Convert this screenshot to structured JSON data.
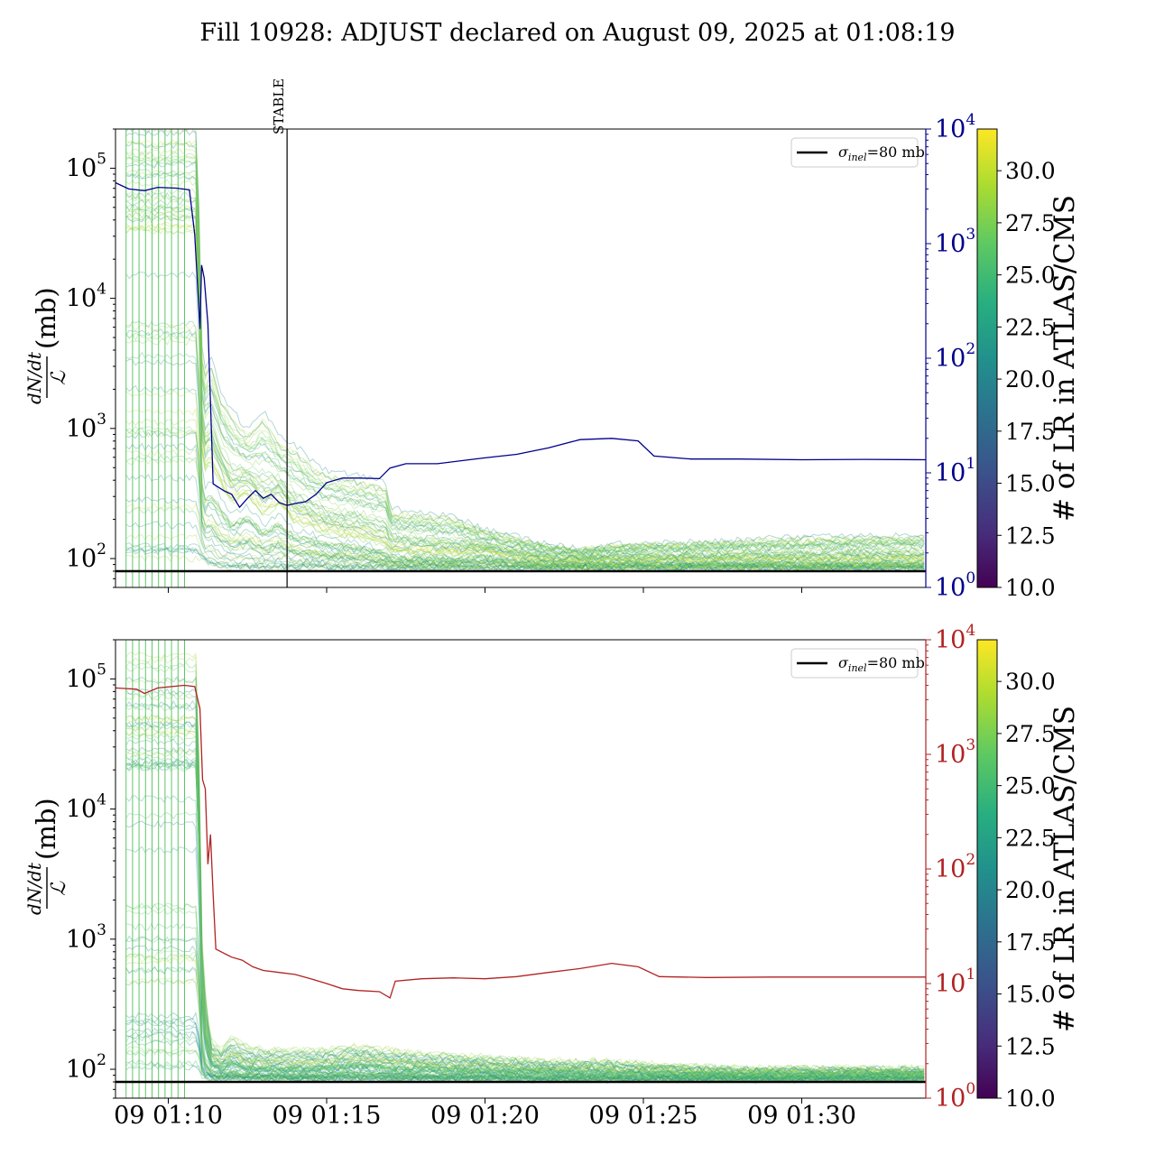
{
  "figure": {
    "title": "Fill 10928: ADJUST declared on August 09, 2025 at 01:08:19"
  },
  "colors": {
    "blue_series": "#00008b",
    "red_series": "#b22222",
    "reference_line": "#000000",
    "band_green": "#5cc863",
    "band_teal": "#2a9a8a",
    "band_yellow": "#c8e020"
  },
  "chart_data": [
    {
      "type": "line",
      "panel": "top",
      "ylabel": "dN/dt / ℒ (mb)",
      "yscale": "log",
      "ylim": [
        60,
        200000
      ],
      "yticks": [
        {
          "base": "10",
          "exp": "2",
          "value": 100
        },
        {
          "base": "10",
          "exp": "3",
          "value": 1000
        },
        {
          "base": "10",
          "exp": "4",
          "value": 10000
        },
        {
          "base": "10",
          "exp": "5",
          "value": 100000
        }
      ],
      "xlim": [
        "01:08:20",
        "01:33:55"
      ],
      "xticks": [
        {
          "label": "",
          "time": "01:10"
        },
        {
          "label": "",
          "time": "01:15"
        },
        {
          "label": "",
          "time": "01:20"
        },
        {
          "label": "",
          "time": "01:25"
        },
        {
          "label": "",
          "time": "01:30"
        }
      ],
      "reference_line": {
        "label_symbol": "σ",
        "label_sub": "inel",
        "label_rest": "=80 mb",
        "value": 80
      },
      "vertical_marker": {
        "label": "STABLE",
        "time": "01:13:45"
      },
      "right_axis": {
        "yscale": "log",
        "ylim": [
          1,
          10000
        ],
        "yticks": [
          {
            "base": "10",
            "exp": "0",
            "value": 1
          },
          {
            "base": "10",
            "exp": "1",
            "value": 10
          },
          {
            "base": "10",
            "exp": "2",
            "value": 100
          },
          {
            "base": "10",
            "exp": "3",
            "value": 1000
          },
          {
            "base": "10",
            "exp": "4",
            "value": 10000
          }
        ],
        "series": {
          "color": "#00008b",
          "points": [
            [
              "01:08:20",
              3400
            ],
            [
              "01:08:45",
              3000
            ],
            [
              "01:09:15",
              2900
            ],
            [
              "01:09:40",
              3100
            ],
            [
              "01:10:15",
              3050
            ],
            [
              "01:10:40",
              2950
            ],
            [
              "01:10:50",
              1200
            ],
            [
              "01:11:00",
              180
            ],
            [
              "01:11:03",
              650
            ],
            [
              "01:11:08",
              500
            ],
            [
              "01:11:15",
              200
            ],
            [
              "01:11:25",
              8
            ],
            [
              "01:11:45",
              7
            ],
            [
              "01:12:00",
              6.5
            ],
            [
              "01:12:15",
              5
            ],
            [
              "01:12:30",
              6
            ],
            [
              "01:12:45",
              7
            ],
            [
              "01:13:00",
              6
            ],
            [
              "01:13:15",
              6.5
            ],
            [
              "01:13:30",
              5.5
            ],
            [
              "01:13:45",
              5.2
            ],
            [
              "01:14:00",
              5.4
            ],
            [
              "01:14:20",
              5.6
            ],
            [
              "01:14:40",
              6.5
            ],
            [
              "01:15:00",
              8.2
            ],
            [
              "01:15:30",
              9
            ],
            [
              "01:16:00",
              9
            ],
            [
              "01:16:40",
              8.9
            ],
            [
              "01:17:00",
              11
            ],
            [
              "01:17:30",
              12
            ],
            [
              "01:18:30",
              12
            ],
            [
              "01:19:30",
              13
            ],
            [
              "01:20:00",
              13.5
            ],
            [
              "01:21:00",
              14.5
            ],
            [
              "01:22:00",
              16.5
            ],
            [
              "01:23:00",
              19.5
            ],
            [
              "01:24:00",
              20
            ],
            [
              "01:24:50",
              19
            ],
            [
              "01:25:20",
              14
            ],
            [
              "01:26:30",
              13.2
            ],
            [
              "01:28:00",
              13.2
            ],
            [
              "01:30:00",
              13.0
            ],
            [
              "01:32:00",
              13.1
            ],
            [
              "01:33:55",
              13.0
            ]
          ]
        }
      },
      "colorbar": {
        "label": "# of LR in ATLAS/CMS",
        "range": [
          10.0,
          32.0
        ],
        "ticks": [
          "10.0",
          "12.5",
          "15.0",
          "17.5",
          "20.0",
          "22.5",
          "25.0",
          "27.5",
          "30.0"
        ]
      },
      "band": {
        "description_source": "multicolored lines per LR colored by colorbar",
        "envelope_time": [
          "01:08:40",
          "01:10:55",
          "01:11:05",
          "01:11:20",
          "01:11:40",
          "01:12:00",
          "01:12:30",
          "01:13:00",
          "01:13:30",
          "01:14:00",
          "01:14:30",
          "01:15:00",
          "01:16:00",
          "01:16:55",
          "01:17:00",
          "01:19:00",
          "01:20:00",
          "01:21:00",
          "01:22:00",
          "01:23:00",
          "01:24:00",
          "01:26:00",
          "01:28:00",
          "01:30:00",
          "01:33:55"
        ],
        "upper": [
          200000,
          200000,
          3000,
          4000,
          2000,
          1500,
          1000,
          1500,
          900,
          800,
          600,
          500,
          450,
          400,
          250,
          220,
          170,
          150,
          130,
          120,
          130,
          135,
          140,
          150,
          155
        ],
        "lower": [
          100,
          100,
          100,
          90,
          85,
          85,
          85,
          85,
          85,
          85,
          85,
          85,
          85,
          85,
          84,
          84,
          84,
          84,
          84,
          84,
          84,
          84,
          84,
          84,
          84
        ],
        "mid": [
          30000,
          30000,
          400,
          500,
          350,
          250,
          300,
          200,
          250,
          180,
          170,
          150,
          140,
          120,
          110,
          105,
          110,
          100,
          95,
          95,
          95,
          95,
          95,
          95,
          95
        ]
      }
    },
    {
      "type": "line",
      "panel": "bottom",
      "ylabel": "dN/dt / ℒ (mb)",
      "yscale": "log",
      "ylim": [
        60,
        200000
      ],
      "yticks": [
        {
          "base": "10",
          "exp": "2",
          "value": 100
        },
        {
          "base": "10",
          "exp": "3",
          "value": 1000
        },
        {
          "base": "10",
          "exp": "4",
          "value": 10000
        },
        {
          "base": "10",
          "exp": "5",
          "value": 100000
        }
      ],
      "xlim": [
        "01:08:20",
        "01:33:55"
      ],
      "xticks": [
        {
          "label": "09 01:10",
          "time": "01:10"
        },
        {
          "label": "09 01:15",
          "time": "01:15"
        },
        {
          "label": "09 01:20",
          "time": "01:20"
        },
        {
          "label": "09 01:25",
          "time": "01:25"
        },
        {
          "label": "09 01:30",
          "time": "01:30"
        }
      ],
      "reference_line": {
        "label_symbol": "σ",
        "label_sub": "inel",
        "label_rest": "=80 mb",
        "value": 80
      },
      "right_axis": {
        "yscale": "log",
        "ylim": [
          1,
          10000
        ],
        "yticks": [
          {
            "base": "10",
            "exp": "0",
            "value": 1
          },
          {
            "base": "10",
            "exp": "1",
            "value": 10
          },
          {
            "base": "10",
            "exp": "2",
            "value": 100
          },
          {
            "base": "10",
            "exp": "3",
            "value": 1000
          },
          {
            "base": "10",
            "exp": "4",
            "value": 10000
          }
        ],
        "series": {
          "color": "#b22222",
          "points": [
            [
              "01:08:20",
              3800
            ],
            [
              "01:09:00",
              3700
            ],
            [
              "01:09:15",
              3400
            ],
            [
              "01:09:40",
              3800
            ],
            [
              "01:10:30",
              4000
            ],
            [
              "01:10:50",
              3900
            ],
            [
              "01:11:00",
              2500
            ],
            [
              "01:11:05",
              600
            ],
            [
              "01:11:10",
              500
            ],
            [
              "01:11:15",
              110
            ],
            [
              "01:11:20",
              200
            ],
            [
              "01:11:25",
              60
            ],
            [
              "01:11:30",
              20
            ],
            [
              "01:12:00",
              17
            ],
            [
              "01:12:20",
              16
            ],
            [
              "01:12:40",
              14
            ],
            [
              "01:13:00",
              13
            ],
            [
              "01:13:30",
              12.5
            ],
            [
              "01:14:00",
              12
            ],
            [
              "01:14:30",
              11
            ],
            [
              "01:15:00",
              10
            ],
            [
              "01:15:30",
              9
            ],
            [
              "01:16:00",
              8.7
            ],
            [
              "01:16:40",
              8.5
            ],
            [
              "01:17:00",
              7.5
            ],
            [
              "01:17:10",
              10.5
            ],
            [
              "01:18:00",
              11
            ],
            [
              "01:19:00",
              11.2
            ],
            [
              "01:20:00",
              11
            ],
            [
              "01:21:00",
              11.5
            ],
            [
              "01:22:00",
              12.5
            ],
            [
              "01:23:00",
              13.5
            ],
            [
              "01:24:00",
              15
            ],
            [
              "01:24:50",
              14
            ],
            [
              "01:25:30",
              11.5
            ],
            [
              "01:27:00",
              11.3
            ],
            [
              "01:29:00",
              11.4
            ],
            [
              "01:31:00",
              11.4
            ],
            [
              "01:33:55",
              11.4
            ]
          ]
        }
      },
      "colorbar": {
        "label": "# of LR in ATLAS/CMS",
        "range": [
          10.0,
          32.0
        ],
        "ticks": [
          "10.0",
          "12.5",
          "15.0",
          "17.5",
          "20.0",
          "22.5",
          "25.0",
          "27.5",
          "30.0"
        ]
      },
      "band": {
        "envelope_time": [
          "01:08:40",
          "01:10:55",
          "01:11:05",
          "01:11:20",
          "01:11:40",
          "01:12:00",
          "01:12:30",
          "01:13:00",
          "01:14:00",
          "01:15:00",
          "01:16:00",
          "01:17:00",
          "01:18:00",
          "01:20:00",
          "01:22:00",
          "01:24:00",
          "01:26:00",
          "01:28:00",
          "01:30:00",
          "01:33:55"
        ],
        "upper": [
          200000,
          200000,
          700,
          180,
          150,
          190,
          160,
          150,
          150,
          150,
          160,
          150,
          140,
          130,
          120,
          120,
          110,
          105,
          105,
          105
        ],
        "lower": [
          95,
          95,
          85,
          84,
          84,
          84,
          84,
          84,
          84,
          84,
          84,
          84,
          84,
          84,
          83,
          83,
          83,
          83,
          83,
          83
        ],
        "mid": [
          20000,
          20000,
          200,
          110,
          100,
          110,
          100,
          100,
          98,
          100,
          105,
          100,
          98,
          96,
          94,
          92,
          91,
          90,
          90,
          90
        ]
      }
    }
  ]
}
